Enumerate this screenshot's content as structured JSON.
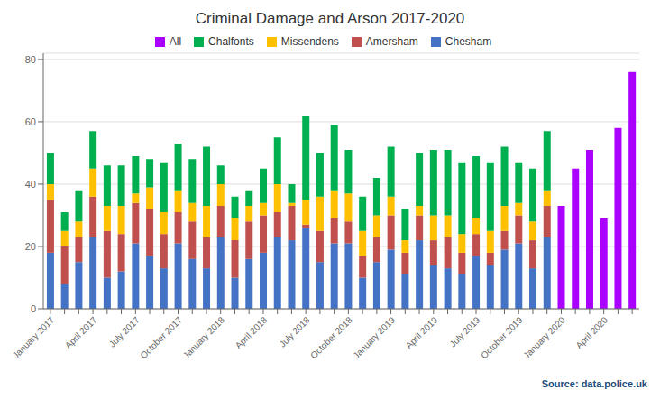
{
  "chart_data": {
    "type": "bar",
    "title": "Criminal Damage and Arson  2017-2020",
    "annotations": [
      "Source:  data.police.uk"
    ],
    "categories": [
      "January 2017",
      null,
      null,
      "April 2017",
      null,
      null,
      "July 2017",
      null,
      null,
      "October 2017",
      null,
      null,
      "January 2018",
      null,
      null,
      "April 2018",
      null,
      null,
      "July 2018",
      null,
      null,
      "October 2018",
      null,
      null,
      "January 2019",
      null,
      null,
      "April 2019",
      null,
      null,
      "July 2019",
      null,
      null,
      "October 2019",
      null,
      null,
      "January 2020",
      null,
      null,
      "April 2020",
      null,
      null
    ],
    "series": [
      {
        "name": "Chesham",
        "color": "#4472C4",
        "values": [
          18,
          8,
          15,
          23,
          10,
          12,
          21,
          17,
          13,
          21,
          16,
          13,
          23,
          10,
          16,
          18,
          23,
          22,
          26,
          15,
          21,
          21,
          10,
          15,
          19,
          11,
          22,
          14,
          13,
          11,
          17,
          14,
          19,
          21,
          13,
          23,
          0,
          0,
          0,
          0,
          0,
          0
        ]
      },
      {
        "name": "Amersham",
        "color": "#C0504D",
        "values": [
          17,
          12,
          8,
          13,
          15,
          12,
          13,
          15,
          11,
          10,
          12,
          10,
          10,
          12,
          12,
          12,
          8,
          11,
          1,
          10,
          8,
          7,
          7,
          8,
          11,
          7,
          8,
          8,
          10,
          7,
          7,
          4,
          6,
          9,
          9,
          10,
          0,
          0,
          0,
          0,
          0,
          0
        ]
      },
      {
        "name": "Missendens",
        "color": "#FFC000",
        "values": [
          5,
          5,
          5,
          9,
          8,
          9,
          3,
          7,
          7,
          7,
          6,
          10,
          7,
          7,
          5,
          4,
          9,
          1,
          8,
          11,
          9,
          9,
          8,
          7,
          6,
          4,
          3,
          8,
          7,
          6,
          5,
          7,
          8,
          4,
          6,
          5,
          0,
          0,
          0,
          0,
          0,
          0
        ]
      },
      {
        "name": "Chalfonts",
        "color": "#00B050",
        "values": [
          10,
          6,
          10,
          12,
          13,
          13,
          12,
          9,
          16,
          15,
          14,
          19,
          6,
          7,
          5,
          11,
          15,
          6,
          27,
          14,
          21,
          14,
          11,
          12,
          16,
          10,
          17,
          21,
          21,
          23,
          20,
          22,
          19,
          13,
          17,
          19,
          0,
          0,
          0,
          0,
          0,
          0
        ]
      },
      {
        "name": "All",
        "color": "#AA00FF",
        "values": [
          0,
          0,
          0,
          0,
          0,
          0,
          0,
          0,
          0,
          0,
          0,
          0,
          0,
          0,
          0,
          0,
          0,
          0,
          0,
          0,
          0,
          0,
          0,
          0,
          0,
          0,
          0,
          0,
          0,
          0,
          0,
          0,
          0,
          0,
          0,
          0,
          33,
          45,
          51,
          29,
          58,
          76
        ]
      }
    ],
    "stacked": true,
    "ylim": [
      0,
      82
    ],
    "yticks": [
      0,
      20,
      40,
      60,
      80
    ],
    "grid": true,
    "legend": "top"
  }
}
